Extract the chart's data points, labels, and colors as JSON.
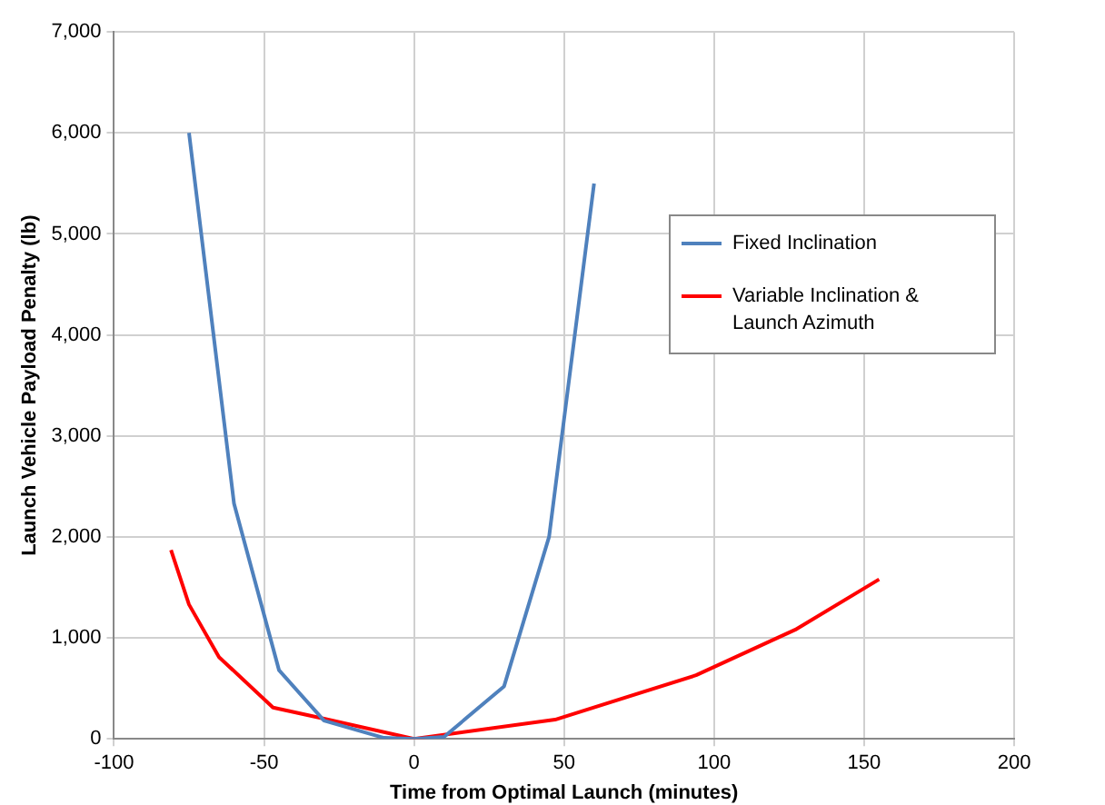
{
  "chart_data": {
    "type": "line",
    "xlabel": "Time from Optimal Launch (minutes)",
    "ylabel": "Launch Vehicle Payload Penalty (lb)",
    "xlim": [
      -100,
      200
    ],
    "xticks": [
      -100,
      -50,
      0,
      50,
      100,
      150,
      200
    ],
    "ylim": [
      0,
      7000
    ],
    "yticks": [
      {
        "value": 0,
        "label": "0"
      },
      {
        "value": 1000,
        "label": "1,000"
      },
      {
        "value": 2000,
        "label": "2,000"
      },
      {
        "value": 3000,
        "label": "3,000"
      },
      {
        "value": 4000,
        "label": "4,000"
      },
      {
        "value": 5000,
        "label": "5,000"
      },
      {
        "value": 6000,
        "label": "6,000"
      },
      {
        "value": 7000,
        "label": "7,000"
      }
    ],
    "grid": true,
    "legend": "top right",
    "marker": "none",
    "line_style": "solid",
    "series": [
      {
        "name": "Fixed Inclination",
        "color": "#4f81bd",
        "x": [
          -75,
          -60,
          -45,
          -30,
          -10,
          0,
          10,
          30,
          45,
          60
        ],
        "values": [
          6000,
          2330,
          680,
          180,
          10,
          0,
          20,
          520,
          2000,
          5500
        ]
      },
      {
        "name": "Variable Inclination & Launch Azimuth",
        "color": "#ff0000",
        "x": [
          -81,
          -75,
          -65,
          -47,
          -30,
          0,
          47,
          94,
          127,
          155
        ],
        "values": [
          1870,
          1330,
          810,
          310,
          200,
          0,
          190,
          630,
          1080,
          1580
        ]
      }
    ]
  }
}
